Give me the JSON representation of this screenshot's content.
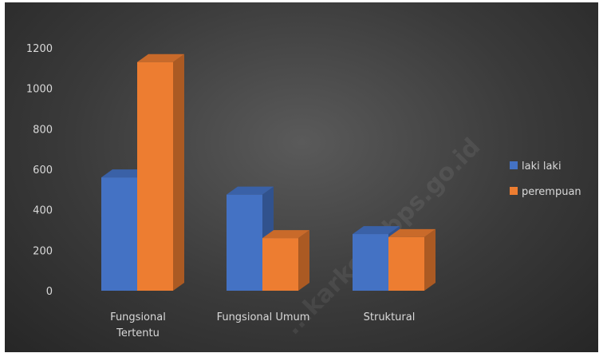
{
  "chart_data": {
    "type": "bar",
    "style": "3d-clustered-column",
    "categories": [
      "Fungsional Tertentu",
      "Fungsional Umum",
      "Struktural"
    ],
    "category_lines": [
      [
        "Fungsional",
        "Tertentu"
      ],
      [
        "Fungsional Umum"
      ],
      [
        "Struktural"
      ]
    ],
    "series": [
      {
        "name": "laki laki",
        "values": [
          560,
          475,
          280
        ],
        "color": "#4472c4"
      },
      {
        "name": "perempuan",
        "values": [
          1130,
          260,
          265
        ],
        "color": "#ed7d31"
      }
    ],
    "ylim": [
      0,
      1200
    ],
    "yticks": [
      0,
      200,
      400,
      600,
      800,
      1000,
      1200
    ],
    "title": "",
    "xlabel": "",
    "ylabel": "",
    "grid": false,
    "legend_position": "right",
    "background": "#3a3a3a",
    "text_color": "#d9d9d9"
  },
  "watermark": "...karkota.bps.go.id"
}
